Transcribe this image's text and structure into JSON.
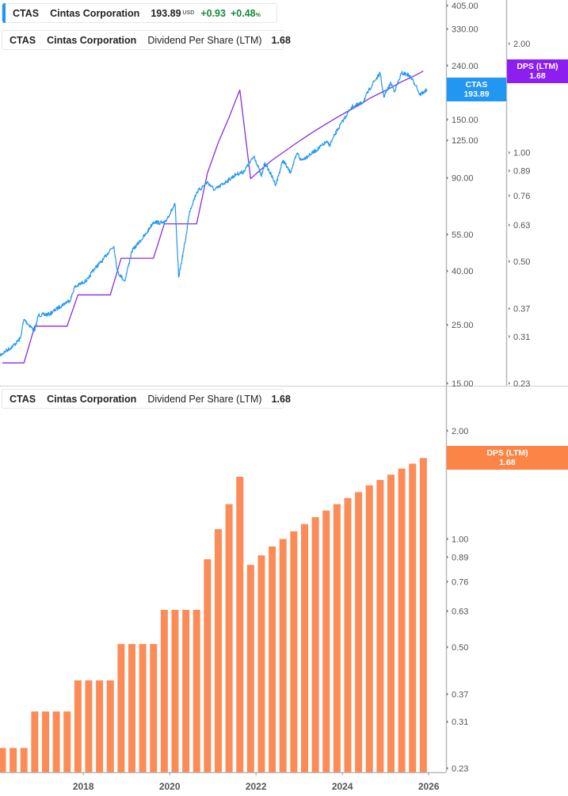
{
  "colors": {
    "price": "#2196f3",
    "dps_line": "#8a2be2",
    "dps_label": "#8c1ff0",
    "bars": "#fc8c57",
    "bar_label": "#fb8446",
    "positive": "#178a3b"
  },
  "legend_price": {
    "ticker": "CTAS",
    "name": "Cintas Corporation",
    "price": "193.89",
    "currency": "USD",
    "change": "+0.93",
    "change_pct": "+0.48",
    "pct_sign": "%"
  },
  "legend_dps_top": {
    "ticker": "CTAS",
    "name": "Cintas Corporation",
    "indicator": "Dividend Per Share (LTM)",
    "value": "1.68"
  },
  "legend_dps_bottom": {
    "ticker": "CTAS",
    "name": "Cintas Corporation",
    "indicator": "Dividend Per Share (LTM)",
    "value": "1.68"
  },
  "price_tag": {
    "label": "CTAS",
    "value": "193.89"
  },
  "dps_tag_top": {
    "label": "DPS (LTM)",
    "value": "1.68"
  },
  "dps_tag_bottom": {
    "label": "DPS (LTM)",
    "value": "1.68"
  },
  "chart_data": [
    {
      "type": "line",
      "scale": "log",
      "y_ticks": [
        "405.00",
        "330.00",
        "240.00",
        "150.00",
        "125.00",
        "90.00",
        "55.00",
        "40.00",
        "25.00",
        "15.00"
      ],
      "y2_ticks": [
        "2.00",
        "1.00",
        "0.89",
        "0.76",
        "0.63",
        "0.50",
        "0.37",
        "0.31",
        "0.23"
      ],
      "series": [
        {
          "name": "CTAS",
          "axis": "left",
          "points": [
            [
              "2016-01",
              19.0
            ],
            [
              "2016-03",
              19.9
            ],
            [
              "2016-05",
              20.8
            ],
            [
              "2016-07",
              22.2
            ],
            [
              "2016-08",
              26.2
            ],
            [
              "2016-11",
              23.7
            ],
            [
              "2016-12",
              27.2
            ],
            [
              "2017-03",
              27.4
            ],
            [
              "2017-06",
              29.3
            ],
            [
              "2017-09",
              31.2
            ],
            [
              "2017-10",
              34.6
            ],
            [
              "2018-02",
              37.3
            ],
            [
              "2018-03",
              40.0
            ],
            [
              "2018-06",
              44.1
            ],
            [
              "2018-08",
              48.2
            ],
            [
              "2018-09",
              49.6
            ],
            [
              "2018-10",
              39.7
            ],
            [
              "2018-12",
              36.6
            ],
            [
              "2019-02",
              47.6
            ],
            [
              "2019-06",
              55.4
            ],
            [
              "2019-08",
              61.4
            ],
            [
              "2019-11",
              60.6
            ],
            [
              "2020-02",
              71.5
            ],
            [
              "2020-03",
              37.9
            ],
            [
              "2020-05",
              53.5
            ],
            [
              "2020-06",
              67.2
            ],
            [
              "2020-08",
              79.4
            ],
            [
              "2020-11",
              86.8
            ],
            [
              "2021-01",
              81.0
            ],
            [
              "2021-07",
              93.0
            ],
            [
              "2021-09",
              94.9
            ],
            [
              "2021-12",
              109
            ],
            [
              "2022-02",
              91.1
            ],
            [
              "2022-03",
              103
            ],
            [
              "2022-06",
              85.0
            ],
            [
              "2022-08",
              105
            ],
            [
              "2022-10",
              94.3
            ],
            [
              "2022-12",
              112
            ],
            [
              "2023-01",
              105
            ],
            [
              "2023-05",
              114
            ],
            [
              "2023-08",
              123
            ],
            [
              "2023-09",
              120
            ],
            [
              "2023-11",
              136
            ],
            [
              "2024-03",
              167
            ],
            [
              "2024-06",
              173
            ],
            [
              "2024-09",
              206
            ],
            [
              "2024-11",
              224
            ],
            [
              "2024-12",
              183
            ],
            [
              "2025-02",
              206
            ],
            [
              "2025-03",
              192
            ],
            [
              "2025-05",
              225
            ],
            [
              "2025-07",
              221
            ],
            [
              "2025-09",
              202
            ],
            [
              "2025-10",
              186
            ],
            [
              "2025-12",
              193.89
            ]
          ]
        },
        {
          "name": "Dividend Per Share (LTM)",
          "axis": "right",
          "source": "bars"
        }
      ]
    },
    {
      "type": "bar",
      "scale": "log",
      "y_ticks": [
        "2.00",
        "1.00",
        "0.89",
        "0.76",
        "0.63",
        "0.50",
        "0.37",
        "0.31",
        "0.23"
      ],
      "x_ticks": [
        "2018",
        "2020",
        "2022",
        "2024",
        "2026"
      ],
      "categories": [
        "2016-02",
        "2016-05",
        "2016-08",
        "2016-11",
        "2017-02",
        "2017-05",
        "2017-08",
        "2017-11",
        "2018-02",
        "2018-05",
        "2018-08",
        "2018-11",
        "2019-02",
        "2019-05",
        "2019-08",
        "2019-11",
        "2020-02",
        "2020-05",
        "2020-08",
        "2020-11",
        "2021-02",
        "2021-05",
        "2021-08",
        "2021-11",
        "2022-02",
        "2022-05",
        "2022-08",
        "2022-11",
        "2023-02",
        "2023-05",
        "2023-08",
        "2023-11",
        "2024-02",
        "2024-05",
        "2024-08",
        "2024-11",
        "2025-02",
        "2025-05",
        "2025-08",
        "2025-11"
      ],
      "values": [
        0.262,
        0.262,
        0.262,
        0.331,
        0.331,
        0.331,
        0.331,
        0.404,
        0.404,
        0.404,
        0.404,
        0.51,
        0.51,
        0.51,
        0.51,
        0.635,
        0.635,
        0.635,
        0.635,
        0.878,
        1.065,
        1.25,
        1.49,
        0.847,
        0.9,
        0.953,
        1.0,
        1.05,
        1.1,
        1.15,
        1.2,
        1.25,
        1.3,
        1.35,
        1.41,
        1.46,
        1.51,
        1.57,
        1.62,
        1.68
      ]
    }
  ]
}
